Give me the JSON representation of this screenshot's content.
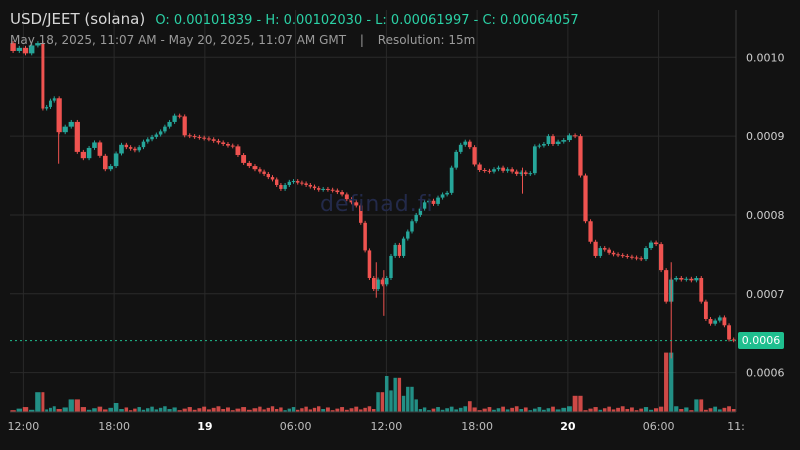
{
  "header": {
    "pair": "USD/JEET (solana)",
    "ohlc": "O: 0.00101839 - H: 0.00102030 - L: 0.00061997 - C: 0.00064057",
    "range": "May 18, 2025, 11:07 AM - May 20, 2025, 11:07 AM GMT",
    "separator": "|",
    "resolution": "Resolution: 15m"
  },
  "watermark": "definad.fi",
  "colors": {
    "background": "#121212",
    "up": "#26a69a",
    "down": "#ef5350",
    "last_price": "#1fbf8f",
    "grid": "#2a2a2a"
  },
  "chart_data": {
    "type": "candlestick",
    "y_axis": {
      "ticks": [
        0.001,
        0.0009,
        0.0008,
        0.0007,
        0.0006
      ],
      "labels": [
        "0.0010",
        "0.0009",
        "0.0008",
        "0.0007",
        "0.0006"
      ],
      "range": [
        0.00055,
        0.00106
      ]
    },
    "x_axis": {
      "ticks": [
        {
          "label": "12:00",
          "time": "May 18 12:00",
          "bold": false
        },
        {
          "label": "18:00",
          "time": "May 18 18:00",
          "bold": false
        },
        {
          "label": "19",
          "time": "May 19 00:00",
          "bold": true
        },
        {
          "label": "06:00",
          "time": "May 19 06:00",
          "bold": false
        },
        {
          "label": "12:00",
          "time": "May 19 12:00",
          "bold": false
        },
        {
          "label": "18:00",
          "time": "May 19 18:00",
          "bold": false
        },
        {
          "label": "20",
          "time": "May 20 00:00",
          "bold": true
        },
        {
          "label": "06:00",
          "time": "May 20 06:00",
          "bold": false
        },
        {
          "label": "11:",
          "time": "May 20 11:07",
          "bold": false
        }
      ]
    },
    "last_price": {
      "label": "0.0006",
      "value": 0.0006406
    },
    "grid": true,
    "segments": [
      {
        "from": "May 18 11:07",
        "to": "May 18 13:10",
        "prices": [
          0.001018,
          0.001008,
          0.001012,
          0.001005,
          0.001015,
          0.001018
        ]
      },
      {
        "from": "May 18 13:10",
        "to": "May 18 14:10",
        "prices": [
          0.001018,
          0.000935,
          0.000937,
          0.000945,
          0.000948
        ]
      },
      {
        "from": "May 18 14:10",
        "to": "May 18 16:10",
        "prices": [
          0.000948,
          0.000905,
          0.000912,
          0.000918,
          0.00088,
          0.000872
        ]
      },
      {
        "from": "May 18 16:10",
        "to": "May 18 18:40",
        "prices": [
          0.000872,
          0.000885,
          0.000892,
          0.000875,
          0.000858,
          0.000862,
          0.000878,
          0.000889
        ]
      },
      {
        "from": "May 18 18:40",
        "to": "May 18 21:30",
        "prices": [
          0.000889,
          0.000886,
          0.000884,
          0.000882,
          0.000886,
          0.000893,
          0.000896,
          0.000899,
          0.000902,
          0.000906,
          0.000912
        ]
      },
      {
        "from": "May 18 21:30",
        "to": "May 18 23:10",
        "prices": [
          0.000912,
          0.000918,
          0.000926,
          0.000925,
          0.000901,
          0.0009
        ]
      },
      {
        "from": "May 18 23:10",
        "to": "May 19 02:00",
        "prices": [
          0.0009,
          0.000899,
          0.000898,
          0.000897,
          0.000896,
          0.000894,
          0.000892,
          0.00089,
          0.000888,
          0.000887
        ]
      },
      {
        "from": "May 19 02:00",
        "to": "May 19 03:30",
        "prices": [
          0.000887,
          0.000876,
          0.000866,
          0.000862,
          0.000858
        ]
      },
      {
        "from": "May 19 03:30",
        "to": "May 19 07:40",
        "prices": [
          0.000858,
          0.000855,
          0.000852,
          0.000848,
          0.000845,
          0.000838,
          0.000833,
          0.000838,
          0.000842,
          0.000843,
          0.000841,
          0.00084,
          0.000838,
          0.000836,
          0.000834,
          0.000832
        ]
      },
      {
        "from": "May 19 07:40",
        "to": "May 19 10:10",
        "prices": [
          0.000832,
          0.000833,
          0.000832,
          0.000831,
          0.000829,
          0.000826,
          0.00082,
          0.000816,
          0.000812
        ]
      },
      {
        "from": "May 19 10:10",
        "to": "May 19 12:10",
        "prices": [
          0.000812,
          0.00079,
          0.000755,
          0.00072,
          0.000706,
          0.000718,
          0.000712,
          0.00072
        ]
      },
      {
        "from": "May 19 12:10",
        "to": "May 19 14:40",
        "prices": [
          0.00072,
          0.000748,
          0.000762,
          0.000748,
          0.00077,
          0.000779,
          0.000792,
          0.0008,
          0.000808,
          0.000816
        ]
      },
      {
        "from": "May 19 14:40",
        "to": "May 19 16:10",
        "prices": [
          0.000816,
          0.000818,
          0.000814,
          0.000822,
          0.000826,
          0.000828
        ]
      },
      {
        "from": "May 19 16:10",
        "to": "May 19 17:40",
        "prices": [
          0.000828,
          0.00086,
          0.00088,
          0.000889,
          0.000893,
          0.000886
        ]
      },
      {
        "from": "May 19 17:40",
        "to": "May 19 18:40",
        "prices": [
          0.000886,
          0.000864,
          0.000857,
          0.000856
        ]
      },
      {
        "from": "May 19 18:40",
        "to": "May 19 20:10",
        "prices": [
          0.000856,
          0.000855,
          0.000858,
          0.00086,
          0.000856,
          0.000858
        ]
      },
      {
        "from": "May 19 20:10",
        "to": "May 19 21:40",
        "prices": [
          0.000858,
          0.000855,
          0.000852,
          0.000854,
          0.000852,
          0.000853
        ]
      },
      {
        "from": "May 19 21:40",
        "to": "May 19 23:10",
        "prices": [
          0.000853,
          0.000887,
          0.000888,
          0.00089,
          0.0009,
          0.00089
        ]
      },
      {
        "from": "May 19 23:10",
        "to": "May 20 00:40",
        "prices": [
          0.00089,
          0.000893,
          0.000895,
          0.000901,
          0.0009
        ]
      },
      {
        "from": "May 20 00:40",
        "to": "May 20 02:00",
        "prices": [
          0.0009,
          0.00085,
          0.000792,
          0.000766,
          0.000748
        ]
      },
      {
        "from": "May 20 02:00",
        "to": "May 20 03:10",
        "prices": [
          0.000748,
          0.000758,
          0.000756,
          0.000752,
          0.00075
        ]
      },
      {
        "from": "May 20 03:10",
        "to": "May 20 05:00",
        "prices": [
          0.00075,
          0.000749,
          0.000748,
          0.000747,
          0.000746,
          0.000745,
          0.000744
        ]
      },
      {
        "from": "May 20 05:00",
        "to": "May 20 06:40",
        "prices": [
          0.000744,
          0.000758,
          0.000765,
          0.000763,
          0.00073,
          0.00069
        ]
      },
      {
        "from": "May 20 06:40",
        "to": "May 20 08:40",
        "prices": [
          0.00069,
          0.000718,
          0.00072,
          0.000718,
          0.000719,
          0.000717,
          0.00072
        ]
      },
      {
        "from": "May 20 08:40",
        "to": "May 20 11:07",
        "prices": [
          0.00072,
          0.00069,
          0.000668,
          0.000662,
          0.000666,
          0.00067,
          0.00066,
          0.000642,
          0.000641
        ]
      }
    ],
    "spikes": [
      {
        "time": "May 18 14:20",
        "high": 0.000948,
        "low": 0.000865
      },
      {
        "time": "May 19 11:20",
        "high": 0.00074,
        "low": 0.000695
      },
      {
        "time": "May 19 11:50",
        "high": 0.00073,
        "low": 0.000672
      },
      {
        "time": "May 19 21:00",
        "high": 0.00086,
        "low": 0.000827
      },
      {
        "time": "May 20 06:50",
        "high": 0.00074,
        "low": 0.000618
      }
    ],
    "volume_spikes": [
      {
        "time": "May 18 13:10",
        "value": 0.55
      },
      {
        "time": "May 18 15:20",
        "value": 0.35
      },
      {
        "time": "May 18 18:10",
        "value": 0.25
      },
      {
        "time": "May 19 11:40",
        "value": 0.55
      },
      {
        "time": "May 19 12:00",
        "value": 1.0
      },
      {
        "time": "May 19 12:10",
        "value": 0.6
      },
      {
        "time": "May 19 12:40",
        "value": 0.95
      },
      {
        "time": "May 19 13:10",
        "value": 0.45
      },
      {
        "time": "May 19 13:30",
        "value": 0.7
      },
      {
        "time": "May 19 14:00",
        "value": 0.35
      },
      {
        "time": "May 19 17:30",
        "value": 0.3
      },
      {
        "time": "May 20 00:40",
        "value": 0.45
      },
      {
        "time": "May 20 06:40",
        "value": 1.65
      },
      {
        "time": "May 20 06:50",
        "value": 0.65
      },
      {
        "time": "May 20 08:40",
        "value": 0.35
      }
    ]
  }
}
